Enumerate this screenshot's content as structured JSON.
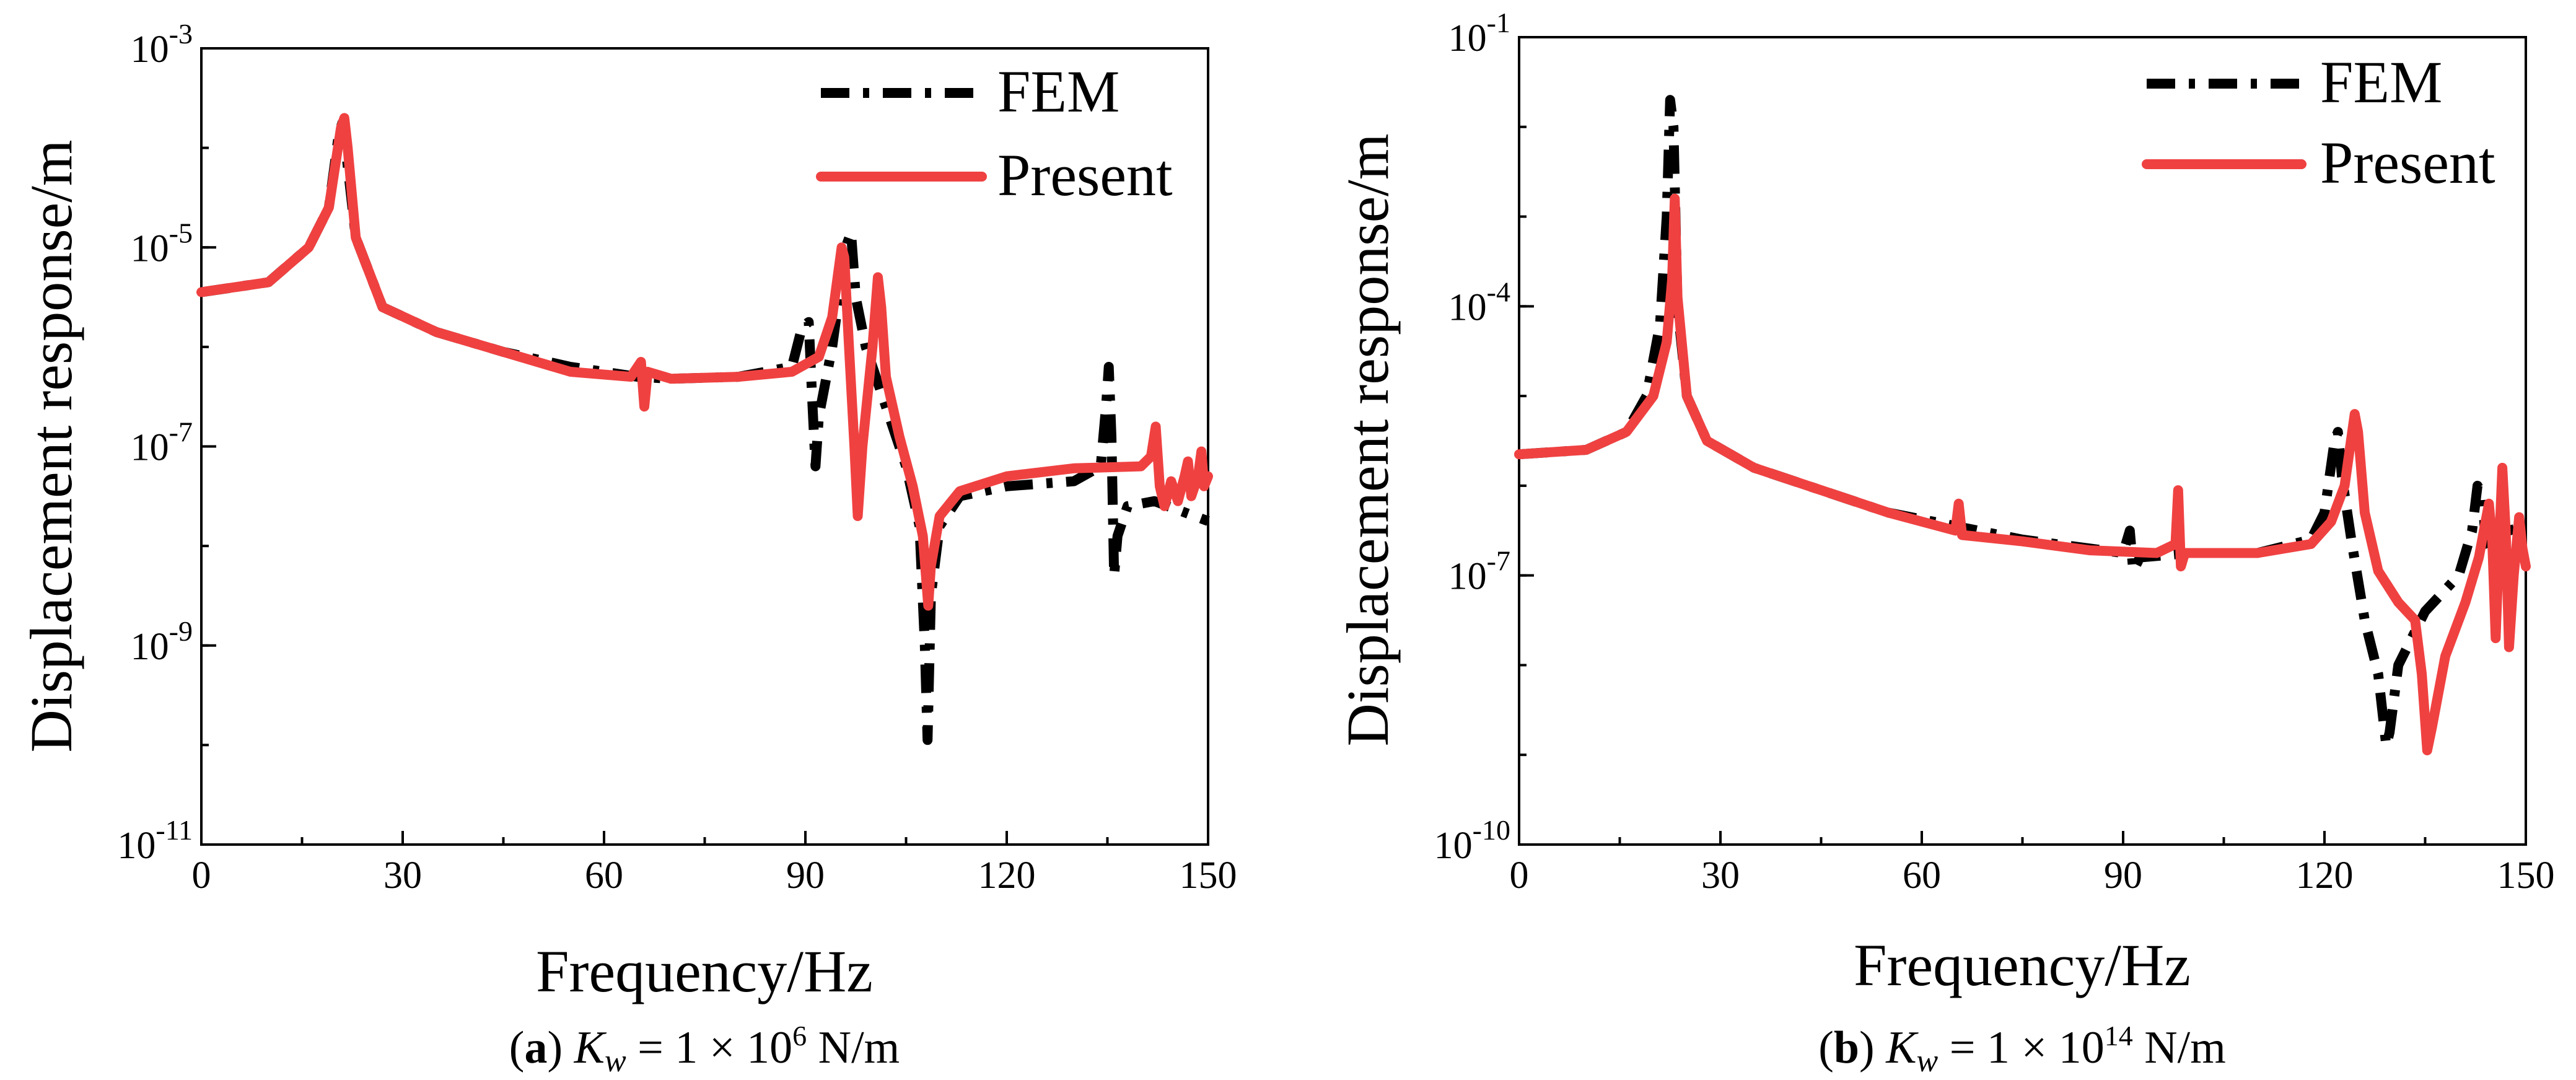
{
  "chart_data": [
    {
      "type": "line",
      "panel": "a",
      "xlabel": "Frequency/Hz",
      "ylabel": "Displacement response/m",
      "xlim": [
        0,
        150
      ],
      "ylim_log10": [
        -11,
        -3
      ],
      "xticks": [
        "0",
        "30",
        "60",
        "90",
        "120",
        "150"
      ],
      "yticks": [
        {
          "base": "10",
          "exp": "-3"
        },
        {
          "base": "10",
          "exp": "-5"
        },
        {
          "base": "10",
          "exp": "-7"
        },
        {
          "base": "10",
          "exp": "-9"
        },
        {
          "base": "10",
          "exp": "-11"
        }
      ],
      "legend_position": "top-right",
      "caption": {
        "letter": "a",
        "k": "K",
        "sub": "w",
        "eq": " = 1 × 10",
        "exp": "6",
        "unit": " N/m"
      },
      "series": [
        {
          "name": "FEM",
          "style": "dash-dot",
          "color": "#000000",
          "points": [
            [
              0,
              -5.45
            ],
            [
              10,
              -5.35
            ],
            [
              16,
              -5.0
            ],
            [
              19,
              -4.6
            ],
            [
              20.5,
              -3.85
            ],
            [
              21,
              -3.75
            ],
            [
              21.5,
              -4.0
            ],
            [
              23,
              -4.9
            ],
            [
              27,
              -5.6
            ],
            [
              35,
              -5.85
            ],
            [
              45,
              -6.05
            ],
            [
              55,
              -6.2
            ],
            [
              65,
              -6.3
            ],
            [
              70,
              -6.32
            ],
            [
              80,
              -6.3
            ],
            [
              88,
              -6.2
            ],
            [
              89.5,
              -5.8
            ],
            [
              90.5,
              -5.75
            ],
            [
              91,
              -6.5
            ],
            [
              91.5,
              -7.2
            ],
            [
              92,
              -6.7
            ],
            [
              94,
              -6.0
            ],
            [
              96,
              -5.0
            ],
            [
              96.8,
              -4.85
            ],
            [
              97.5,
              -5.5
            ],
            [
              99,
              -6.0
            ],
            [
              102,
              -6.6
            ],
            [
              105,
              -7.2
            ],
            [
              107,
              -7.8
            ],
            [
              107.8,
              -9.0
            ],
            [
              108.2,
              -9.95
            ],
            [
              108.7,
              -8.5
            ],
            [
              110,
              -7.8
            ],
            [
              113,
              -7.5
            ],
            [
              120,
              -7.4
            ],
            [
              130,
              -7.35
            ],
            [
              134,
              -7.2
            ],
            [
              134.8,
              -6.6
            ],
            [
              135.2,
              -6.2
            ],
            [
              135.6,
              -6.9
            ],
            [
              136,
              -8.3
            ],
            [
              136.5,
              -7.9
            ],
            [
              138,
              -7.6
            ],
            [
              142,
              -7.55
            ],
            [
              150,
              -7.75
            ]
          ]
        },
        {
          "name": "Present",
          "style": "solid",
          "color": "#f04141",
          "points": [
            [
              0,
              -5.45
            ],
            [
              10,
              -5.35
            ],
            [
              16,
              -5.0
            ],
            [
              19,
              -4.6
            ],
            [
              20.8,
              -3.8
            ],
            [
              21.3,
              -3.7
            ],
            [
              21.8,
              -4.0
            ],
            [
              23,
              -4.9
            ],
            [
              27,
              -5.6
            ],
            [
              35,
              -5.85
            ],
            [
              45,
              -6.05
            ],
            [
              55,
              -6.25
            ],
            [
              64,
              -6.3
            ],
            [
              65.5,
              -6.15
            ],
            [
              66,
              -6.6
            ],
            [
              66.5,
              -6.25
            ],
            [
              70,
              -6.32
            ],
            [
              80,
              -6.3
            ],
            [
              88,
              -6.25
            ],
            [
              92,
              -6.1
            ],
            [
              94,
              -5.7
            ],
            [
              95.4,
              -5.0
            ],
            [
              95.8,
              -5.1
            ],
            [
              96.5,
              -6.0
            ],
            [
              97.3,
              -7.0
            ],
            [
              97.8,
              -7.7
            ],
            [
              98.5,
              -7.0
            ],
            [
              100,
              -6.0
            ],
            [
              100.8,
              -5.3
            ],
            [
              101.3,
              -5.6
            ],
            [
              102,
              -6.3
            ],
            [
              104,
              -6.9
            ],
            [
              106,
              -7.4
            ],
            [
              107.5,
              -7.9
            ],
            [
              108.3,
              -8.6
            ],
            [
              108.7,
              -8.2
            ],
            [
              110,
              -7.7
            ],
            [
              113,
              -7.45
            ],
            [
              120,
              -7.3
            ],
            [
              130,
              -7.22
            ],
            [
              140,
              -7.2
            ],
            [
              141.5,
              -7.1
            ],
            [
              142.2,
              -6.8
            ],
            [
              142.8,
              -7.4
            ],
            [
              143.5,
              -7.6
            ],
            [
              144.5,
              -7.35
            ],
            [
              145.5,
              -7.55
            ],
            [
              146.5,
              -7.3
            ],
            [
              147,
              -7.15
            ],
            [
              147.5,
              -7.5
            ],
            [
              148.5,
              -7.3
            ],
            [
              149,
              -7.05
            ],
            [
              149.4,
              -7.4
            ],
            [
              150,
              -7.3
            ]
          ]
        }
      ]
    },
    {
      "type": "line",
      "panel": "b",
      "xlabel": "Frequency/Hz",
      "ylabel": "Displacement response/m",
      "xlim": [
        0,
        150
      ],
      "ylim_log10": [
        -10,
        -1
      ],
      "xticks": [
        "0",
        "30",
        "60",
        "90",
        "120",
        "150"
      ],
      "yticks": [
        {
          "base": "10",
          "exp": "-1"
        },
        {
          "base": "10",
          "exp": "-4"
        },
        {
          "base": "10",
          "exp": "-7"
        },
        {
          "base": "10",
          "exp": "-10"
        }
      ],
      "legend_position": "top-right",
      "caption": {
        "letter": "b",
        "k": "K",
        "sub": "w",
        "eq": " = 1 × 10",
        "exp": "14",
        "unit": " N/m"
      },
      "series": [
        {
          "name": "FEM",
          "style": "dash-dot",
          "color": "#000000",
          "points": [
            [
              0,
              -5.65
            ],
            [
              10,
              -5.6
            ],
            [
              16,
              -5.4
            ],
            [
              19,
              -5.0
            ],
            [
              21,
              -4.2
            ],
            [
              22,
              -3.0
            ],
            [
              22.5,
              -1.7
            ],
            [
              23,
              -2.0
            ],
            [
              23.6,
              -4.0
            ],
            [
              25,
              -5.0
            ],
            [
              28,
              -5.5
            ],
            [
              35,
              -5.8
            ],
            [
              45,
              -6.05
            ],
            [
              55,
              -6.3
            ],
            [
              65,
              -6.45
            ],
            [
              75,
              -6.6
            ],
            [
              85,
              -6.7
            ],
            [
              90,
              -6.75
            ],
            [
              91,
              -6.5
            ],
            [
              91.5,
              -6.95
            ],
            [
              92.5,
              -6.8
            ],
            [
              100,
              -6.75
            ],
            [
              110,
              -6.75
            ],
            [
              118,
              -6.6
            ],
            [
              120,
              -6.3
            ],
            [
              121.5,
              -5.5
            ],
            [
              122,
              -5.4
            ],
            [
              122.6,
              -5.9
            ],
            [
              124,
              -6.6
            ],
            [
              126,
              -7.5
            ],
            [
              128,
              -8.1
            ],
            [
              129.2,
              -8.9
            ],
            [
              129.7,
              -8.75
            ],
            [
              131,
              -8.0
            ],
            [
              135,
              -7.4
            ],
            [
              140,
              -7.0
            ],
            [
              142,
              -6.5
            ],
            [
              142.8,
              -6.0
            ],
            [
              143.5,
              -6.1
            ],
            [
              144,
              -6.6
            ],
            [
              145.5,
              -6.9
            ],
            [
              146.5,
              -6.4
            ],
            [
              147.5,
              -6.5
            ],
            [
              150,
              -6.45
            ]
          ]
        },
        {
          "name": "Present",
          "style": "solid",
          "color": "#f04141",
          "points": [
            [
              0,
              -5.65
            ],
            [
              10,
              -5.6
            ],
            [
              16,
              -5.4
            ],
            [
              20,
              -5.0
            ],
            [
              22,
              -4.4
            ],
            [
              22.8,
              -3.7
            ],
            [
              23.2,
              -2.8
            ],
            [
              23.6,
              -3.9
            ],
            [
              25,
              -5.0
            ],
            [
              28,
              -5.5
            ],
            [
              35,
              -5.8
            ],
            [
              45,
              -6.05
            ],
            [
              55,
              -6.3
            ],
            [
              65,
              -6.5
            ],
            [
              65.5,
              -6.2
            ],
            [
              66,
              -6.55
            ],
            [
              75,
              -6.62
            ],
            [
              85,
              -6.72
            ],
            [
              95,
              -6.75
            ],
            [
              97.8,
              -6.65
            ],
            [
              98.2,
              -6.05
            ],
            [
              98.6,
              -6.9
            ],
            [
              99.2,
              -6.75
            ],
            [
              110,
              -6.75
            ],
            [
              118,
              -6.65
            ],
            [
              121,
              -6.4
            ],
            [
              123,
              -6.0
            ],
            [
              124.5,
              -5.2
            ],
            [
              125,
              -5.4
            ],
            [
              126,
              -6.3
            ],
            [
              128,
              -6.95
            ],
            [
              131,
              -7.3
            ],
            [
              133.5,
              -7.5
            ],
            [
              134.5,
              -8.1
            ],
            [
              135.3,
              -8.95
            ],
            [
              136,
              -8.7
            ],
            [
              138,
              -7.9
            ],
            [
              141,
              -7.3
            ],
            [
              143,
              -6.8
            ],
            [
              144.5,
              -6.2
            ],
            [
              145,
              -6.6
            ],
            [
              145.5,
              -7.7
            ],
            [
              146,
              -6.7
            ],
            [
              146.5,
              -5.8
            ],
            [
              147,
              -6.5
            ],
            [
              147.5,
              -7.8
            ],
            [
              148.2,
              -7.0
            ],
            [
              149,
              -6.35
            ],
            [
              149.5,
              -6.7
            ],
            [
              150,
              -6.9
            ]
          ]
        }
      ]
    }
  ]
}
